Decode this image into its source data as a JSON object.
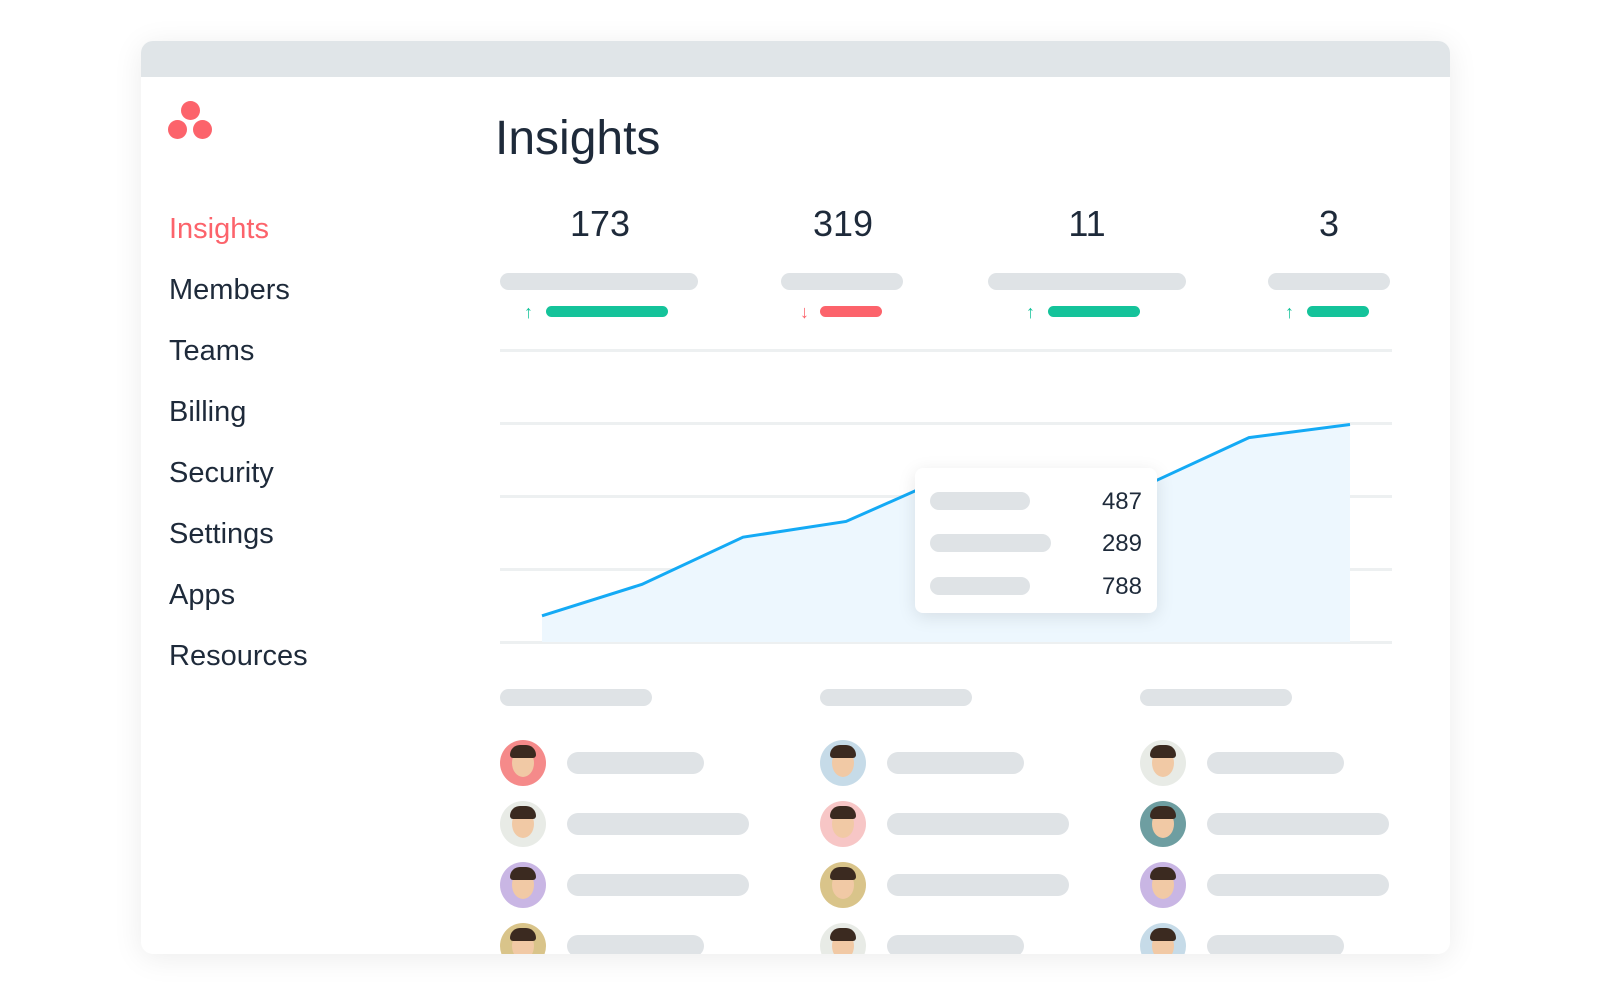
{
  "brand": {
    "logo": "asana-three-dots-logo",
    "color": "#fc636b"
  },
  "sidebar": {
    "items": [
      {
        "label": "Insights",
        "active": true
      },
      {
        "label": "Members"
      },
      {
        "label": "Teams"
      },
      {
        "label": "Billing"
      },
      {
        "label": "Security"
      },
      {
        "label": "Settings"
      },
      {
        "label": "Apps"
      },
      {
        "label": "Resources"
      }
    ]
  },
  "main": {
    "title": "Insights",
    "stats": [
      {
        "value": "173",
        "trend": "up"
      },
      {
        "value": "319",
        "trend": "down"
      },
      {
        "value": "11",
        "trend": "up"
      },
      {
        "value": "3",
        "trend": "up"
      }
    ],
    "tooltip": {
      "values": [
        "487",
        "289",
        "788"
      ]
    }
  },
  "colors": {
    "up": "#14c39a",
    "down": "#fc636b",
    "line": "#14aaf5",
    "fill": "#edf7fe",
    "placeholder": "#dfe3e6"
  },
  "chart_data": {
    "type": "area",
    "values": [
      10,
      22,
      40,
      46,
      59,
      62,
      55,
      54,
      60,
      78,
      83
    ],
    "highlight_index": 4,
    "grid": true
  },
  "members": {
    "columns": [
      {
        "avatars": [
          "#f58a8a",
          "#e8ebe6",
          "#c9b6e4",
          "#d9c48a"
        ]
      },
      {
        "avatars": [
          "#c6dbe8",
          "#f7c6c6",
          "#d9c48a",
          "#e8ebe6"
        ]
      },
      {
        "avatars": [
          "#e8ebe6",
          "#6e9ea1",
          "#c9b6e4",
          "#c6dbe8"
        ]
      }
    ]
  }
}
